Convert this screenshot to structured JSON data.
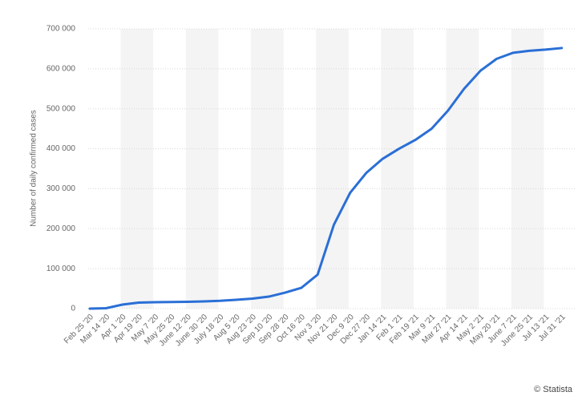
{
  "chart_data": {
    "type": "line",
    "y_label": "Number of daily confirmed cases",
    "credit": "© Statista",
    "categories": [
      "Feb 25 '20",
      "Mar 14 '20",
      "Apr 1 '20",
      "Apr 19 '20",
      "May 7 '20",
      "May 25 '20",
      "June 12 '20",
      "June 30 '20",
      "July 18 '20",
      "Aug 5 '20",
      "Aug 23 '20",
      "Sep 10 '20",
      "Sep 28 '20",
      "Oct 16 '20",
      "Nov 3 '20",
      "Nov 21 '20",
      "Dec 9 '20",
      "Dec 27 '20",
      "Jan 14 '21",
      "Feb 1 '21",
      "Feb 19 '21",
      "Mar 9 '21",
      "Mar 27 '21",
      "Apr 14 '21",
      "May 2 '21",
      "May 20 '21",
      "June 7 '21",
      "June 25 '21",
      "Jul 13 '21",
      "Jul 31 '21"
    ],
    "values": [
      0,
      1000,
      10000,
      15000,
      16000,
      16500,
      17000,
      18000,
      19500,
      22000,
      25000,
      30000,
      40000,
      52000,
      85000,
      210000,
      290000,
      340000,
      375000,
      400000,
      422000,
      450000,
      495000,
      550000,
      595000,
      625000,
      640000,
      645000,
      648000,
      652000
    ],
    "color": "#2a6fd6",
    "ylim": [
      0,
      700000
    ],
    "yticks": [
      {
        "value": 0,
        "label": "0"
      },
      {
        "value": 100000,
        "label": "100 000"
      },
      {
        "value": 200000,
        "label": "200 000"
      },
      {
        "value": 300000,
        "label": "300 000"
      },
      {
        "value": 400000,
        "label": "400 000"
      },
      {
        "value": 500000,
        "label": "500 000"
      },
      {
        "value": 600000,
        "label": "600 000"
      },
      {
        "value": 700000,
        "label": "700 000"
      }
    ],
    "grid": true
  }
}
